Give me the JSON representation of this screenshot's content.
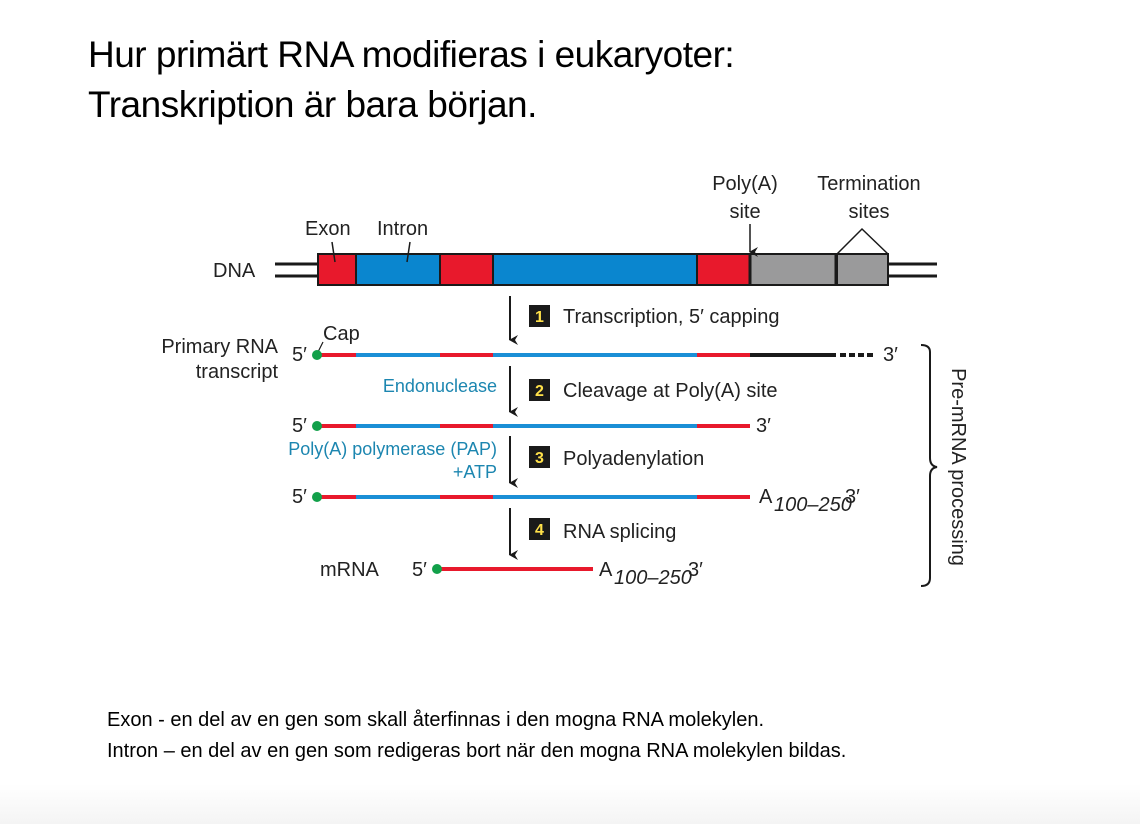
{
  "title": {
    "line1": "Hur primärt RNA modifieras i eukaryoter:",
    "line2": "Transkription är bara början."
  },
  "diagram": {
    "dna_label": "DNA",
    "exon_label": "Exon",
    "intron_label": "Intron",
    "polya_site_label": [
      "Poly(A)",
      "site"
    ],
    "termination_sites_label": [
      "Termination",
      "sites"
    ],
    "primary_rna_label": [
      "Primary RNA",
      "transcript"
    ],
    "cap_label": "Cap",
    "five_prime": "5′",
    "three_prime": "3′",
    "polya_tail": "A",
    "polya_subscript": "100–250",
    "mrna_label": "mRNA",
    "steps": [
      {
        "number": "1",
        "label": "Transcription, 5′ capping",
        "enzyme": []
      },
      {
        "number": "2",
        "label": "Cleavage at Poly(A) site",
        "enzyme": [
          "Endonuclease"
        ]
      },
      {
        "number": "3",
        "label": "Polyadenylation",
        "enzyme": [
          "Poly(A) polymerase (PAP)",
          "+ATP"
        ]
      },
      {
        "number": "4",
        "label": "RNA splicing",
        "enzyme": []
      }
    ],
    "bracket_label": "Pre-mRNA processing",
    "colors": {
      "exon": "#e8192c",
      "intron": "#0a86cf",
      "termination": "#9a9a9b",
      "cap": "#12a04a",
      "enzyme_text": "#1c86b0"
    }
  },
  "definitions": {
    "exon": "Exon -  en del av en gen som skall återfinnas i den mogna RNA molekylen.",
    "intron": "Intron – en del av en gen som redigeras bort när den mogna RNA molekylen bildas."
  }
}
